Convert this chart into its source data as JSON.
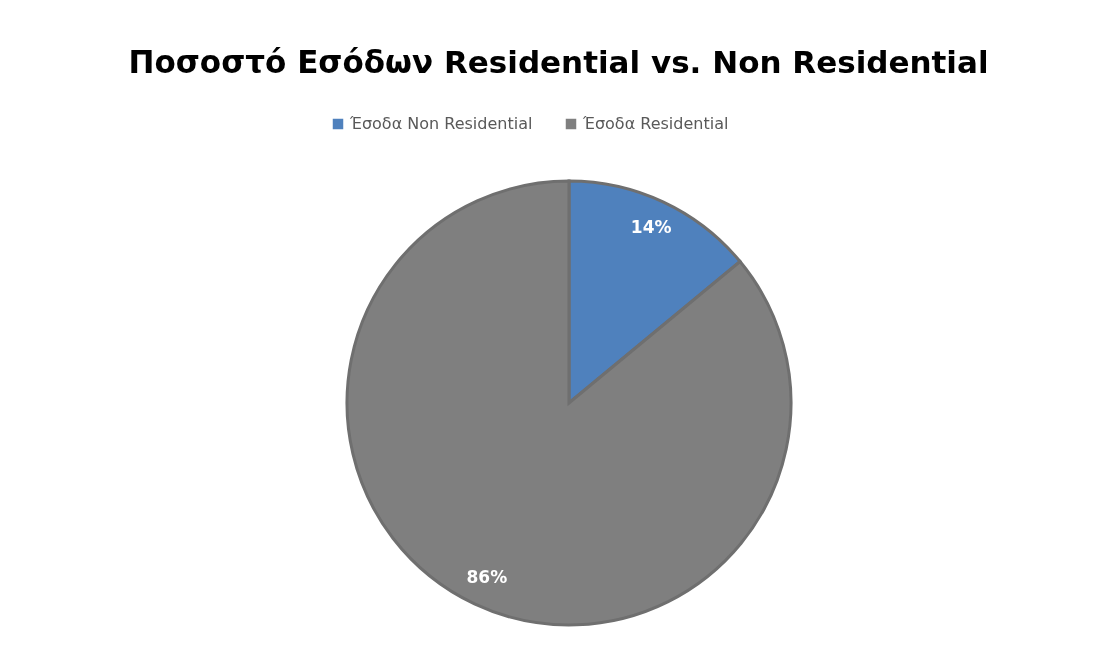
{
  "chart_data": {
    "type": "pie",
    "title": "Ποσοστό Εσόδων Residential vs. Non Residential",
    "categories": [
      "Έσοδα Non Residential",
      "Έσοδα Residential"
    ],
    "values": [
      14,
      86
    ],
    "colors": [
      "#4f81bd",
      "#7f7f7f"
    ],
    "value_labels": [
      "14%",
      "86%"
    ],
    "legend": "top"
  }
}
